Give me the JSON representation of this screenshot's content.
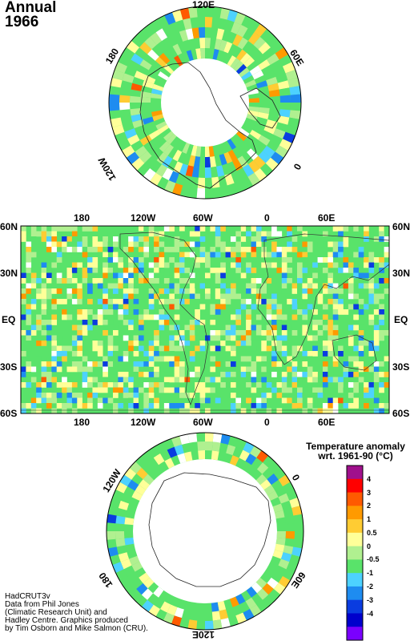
{
  "title": {
    "line1": "Annual",
    "line2": "1966"
  },
  "north_polar": {
    "labels": {
      "top": "120E",
      "upper_left": "180",
      "upper_right": "60E",
      "right": "0",
      "left": "120W"
    }
  },
  "world_map": {
    "top_lon_labels": [
      "180",
      "120W",
      "60W",
      "0",
      "60E"
    ],
    "bottom_lon_labels": [
      "180",
      "120W",
      "60W",
      "0",
      "60E"
    ],
    "left_lat_labels": [
      "60N",
      "30N",
      "EQ",
      "30S",
      "60S"
    ],
    "right_lat_labels": [
      "60N",
      "30N",
      "EQ",
      "30S",
      "60S"
    ]
  },
  "south_polar": {
    "labels": {
      "upper_left": "120W",
      "right": "0",
      "lower_left": "180",
      "lower_right": "60E",
      "bottom": "120E"
    }
  },
  "legend": {
    "title_line1": "Temperature anomaly",
    "title_line2": "wrt. 1961-90  (°C)",
    "ticks": [
      "4",
      "3",
      "2",
      "1",
      "0.5",
      "0",
      "-0.5",
      "-1",
      "-2",
      "-3",
      "-4"
    ],
    "colors": [
      "#a0108c",
      "#ff0000",
      "#ff5a00",
      "#ff9a00",
      "#ffcc33",
      "#ffff99",
      "#b0f090",
      "#59e36a",
      "#4dd2ff",
      "#1e8cf0",
      "#0a3ce0",
      "#0000cc",
      "#7a00ff"
    ]
  },
  "credits": [
    "HadCRUT3v",
    "Data from Phil Jones",
    "(Climatic Research Unit) and",
    "Hadley Centre.  Graphics produced",
    "by Tim Osborn and Mike Salmon (CRU)."
  ]
}
